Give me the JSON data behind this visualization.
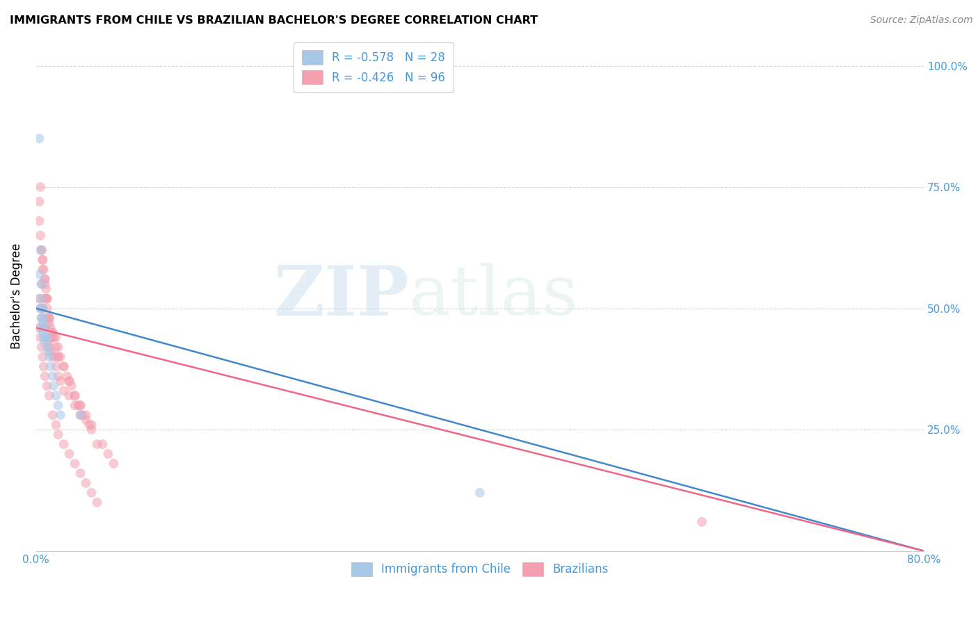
{
  "title": "IMMIGRANTS FROM CHILE VS BRAZILIAN BACHELOR'S DEGREE CORRELATION CHART",
  "source": "Source: ZipAtlas.com",
  "ylabel": "Bachelor's Degree",
  "blue_color": "#a8c8e8",
  "pink_color": "#f4a0b0",
  "blue_line_color": "#4488cc",
  "pink_line_color": "#ee6688",
  "text_color": "#4499dd",
  "watermark_zip": "ZIP",
  "watermark_atlas": "atlas",
  "chile_scatter_x": [
    0.003,
    0.004,
    0.004,
    0.005,
    0.005,
    0.005,
    0.006,
    0.006,
    0.006,
    0.007,
    0.007,
    0.008,
    0.008,
    0.009,
    0.01,
    0.01,
    0.011,
    0.012,
    0.013,
    0.015,
    0.016,
    0.018,
    0.02,
    0.022,
    0.04,
    0.4,
    0.004,
    0.003
  ],
  "chile_scatter_y": [
    0.57,
    0.52,
    0.5,
    0.55,
    0.48,
    0.46,
    0.5,
    0.47,
    0.45,
    0.48,
    0.44,
    0.46,
    0.43,
    0.44,
    0.42,
    0.44,
    0.41,
    0.4,
    0.38,
    0.36,
    0.34,
    0.32,
    0.3,
    0.28,
    0.28,
    0.12,
    0.62,
    0.85
  ],
  "brazil_scatter_x": [
    0.003,
    0.004,
    0.005,
    0.005,
    0.006,
    0.006,
    0.007,
    0.007,
    0.008,
    0.008,
    0.009,
    0.009,
    0.01,
    0.01,
    0.011,
    0.011,
    0.012,
    0.012,
    0.013,
    0.013,
    0.014,
    0.015,
    0.015,
    0.016,
    0.017,
    0.018,
    0.018,
    0.02,
    0.02,
    0.022,
    0.022,
    0.025,
    0.025,
    0.028,
    0.03,
    0.03,
    0.032,
    0.035,
    0.035,
    0.038,
    0.04,
    0.04,
    0.042,
    0.045,
    0.048,
    0.05,
    0.055,
    0.06,
    0.065,
    0.07,
    0.005,
    0.006,
    0.007,
    0.008,
    0.009,
    0.01,
    0.012,
    0.015,
    0.018,
    0.02,
    0.003,
    0.004,
    0.005,
    0.006,
    0.008,
    0.01,
    0.012,
    0.015,
    0.02,
    0.025,
    0.03,
    0.035,
    0.04,
    0.045,
    0.05,
    0.003,
    0.004,
    0.005,
    0.006,
    0.007,
    0.008,
    0.01,
    0.012,
    0.015,
    0.018,
    0.02,
    0.025,
    0.03,
    0.035,
    0.04,
    0.045,
    0.05,
    0.055,
    0.6,
    0.003,
    0.004
  ],
  "brazil_scatter_y": [
    0.52,
    0.5,
    0.55,
    0.48,
    0.58,
    0.5,
    0.52,
    0.46,
    0.55,
    0.48,
    0.52,
    0.46,
    0.5,
    0.44,
    0.48,
    0.43,
    0.47,
    0.42,
    0.46,
    0.41,
    0.44,
    0.45,
    0.4,
    0.44,
    0.4,
    0.44,
    0.38,
    0.42,
    0.36,
    0.4,
    0.35,
    0.38,
    0.33,
    0.36,
    0.35,
    0.32,
    0.34,
    0.32,
    0.3,
    0.3,
    0.3,
    0.28,
    0.28,
    0.27,
    0.26,
    0.25,
    0.22,
    0.22,
    0.2,
    0.18,
    0.62,
    0.6,
    0.58,
    0.56,
    0.54,
    0.52,
    0.48,
    0.45,
    0.42,
    0.4,
    0.68,
    0.65,
    0.62,
    0.6,
    0.56,
    0.52,
    0.48,
    0.44,
    0.4,
    0.38,
    0.35,
    0.32,
    0.3,
    0.28,
    0.26,
    0.46,
    0.44,
    0.42,
    0.4,
    0.38,
    0.36,
    0.34,
    0.32,
    0.28,
    0.26,
    0.24,
    0.22,
    0.2,
    0.18,
    0.16,
    0.14,
    0.12,
    0.1,
    0.06,
    0.72,
    0.75
  ],
  "xlim": [
    0.0,
    0.8
  ],
  "ylim": [
    0.0,
    1.05
  ],
  "marker_size": 100,
  "blue_line_x0": 0.0,
  "blue_line_y0": 0.5,
  "blue_line_x1": 0.8,
  "blue_line_y1": 0.0,
  "pink_line_x0": 0.0,
  "pink_line_y0": 0.46,
  "pink_line_x1": 0.8,
  "pink_line_y1": 0.0
}
